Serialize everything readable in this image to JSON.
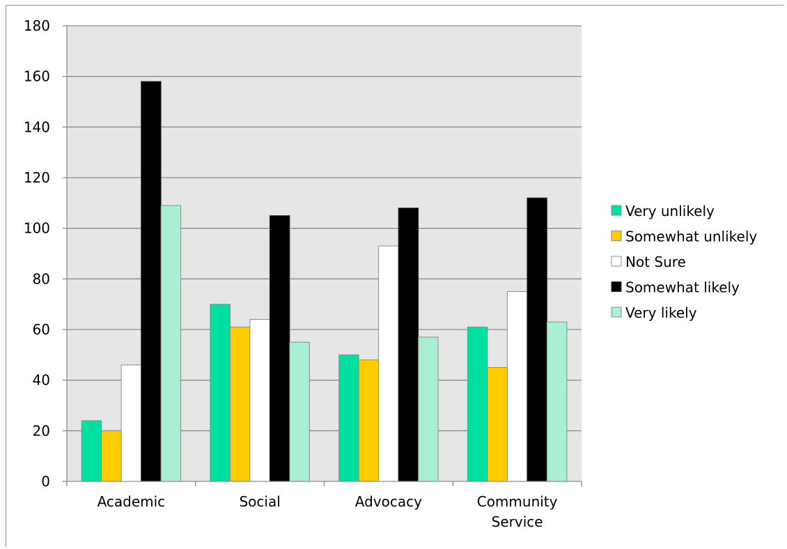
{
  "chart_data": {
    "type": "bar",
    "categories": [
      [
        "Academic"
      ],
      [
        "Social"
      ],
      [
        "Advocacy"
      ],
      [
        "Community",
        "Service"
      ]
    ],
    "series": [
      {
        "name": "Very unlikely",
        "color": "#00e0a0",
        "values": [
          24,
          70,
          50,
          61
        ]
      },
      {
        "name": "Somewhat unlikely",
        "color": "#ffcc00",
        "values": [
          20,
          61,
          48,
          45
        ]
      },
      {
        "name": "Not Sure",
        "color": "#ffffff",
        "values": [
          46,
          64,
          93,
          75
        ]
      },
      {
        "name": "Somewhat likely",
        "color": "#000000",
        "values": [
          158,
          105,
          108,
          112
        ]
      },
      {
        "name": "Very likely",
        "color": "#aaeed4",
        "values": [
          109,
          55,
          57,
          63
        ]
      }
    ],
    "ylim": [
      0,
      180
    ],
    "yticks": [
      0,
      20,
      40,
      60,
      80,
      100,
      120,
      140,
      160,
      180
    ],
    "grid": true,
    "plot_background": "#e6e6e6",
    "legend_position": "right",
    "title": "",
    "xlabel": "",
    "ylabel": ""
  }
}
